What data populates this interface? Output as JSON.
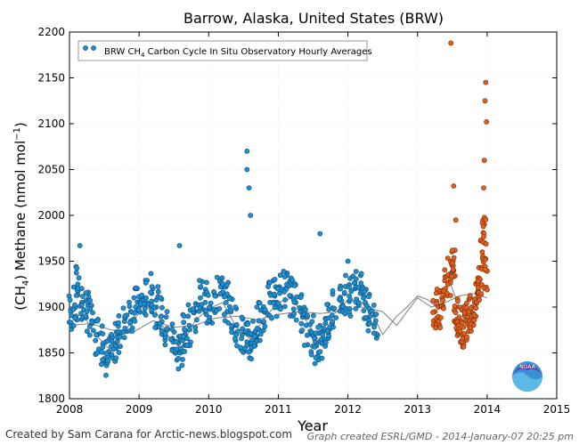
{
  "chart_data": {
    "type": "scatter",
    "title": "Barrow, Alaska, United States (BRW)",
    "xlabel": "Year",
    "ylabel_main": "(CH",
    "ylabel_sub": "4",
    "ylabel_rest": ") Methane (nmol mol",
    "ylabel_sup": "−1",
    "ylabel_end": ")",
    "xlim": [
      2008,
      2015
    ],
    "ylim": [
      1800,
      2200
    ],
    "x_ticks": [
      "2008",
      "2009",
      "2010",
      "2011",
      "2012",
      "2013",
      "2014",
      "2015"
    ],
    "y_ticks": [
      "1800",
      "1850",
      "1900",
      "1950",
      "2000",
      "2050",
      "2100",
      "2150",
      "2200"
    ],
    "grid": true,
    "legend": {
      "placement": "top-left",
      "label_prefix": "BRW CH",
      "label_sub": "4",
      "label_suffix": " Carbon Cycle In Situ Observatory Hourly Averages"
    },
    "series": [
      {
        "name": "BRW CH4 Carbon Cycle In Situ Observatory Hourly Averages",
        "color": "#1f8fd0",
        "edge": "#0b4a78",
        "x": [
          2008.02,
          2008.08,
          2008.12,
          2008.18,
          2008.25,
          2008.32,
          2008.4,
          2008.48,
          2008.55,
          2008.6,
          2008.66,
          2008.72,
          2008.8,
          2008.88,
          2008.95,
          2009.02,
          2009.1,
          2009.18,
          2009.25,
          2009.32,
          2009.4,
          2009.48,
          2009.55,
          2009.6,
          2009.66,
          2009.72,
          2009.8,
          2009.88,
          2009.95,
          2010.02,
          2010.1,
          2010.18,
          2010.25,
          2010.32,
          2010.4,
          2010.48,
          2010.55,
          2010.6,
          2010.66,
          2010.72,
          2010.8,
          2010.88,
          2010.95,
          2011.02,
          2011.1,
          2011.18,
          2011.25,
          2011.32,
          2011.4,
          2011.48,
          2011.55,
          2011.6,
          2011.66,
          2011.72,
          2011.8,
          2011.88,
          2011.95,
          2012.02,
          2012.1,
          2012.18,
          2012.25,
          2012.32,
          2012.4
        ],
        "y": [
          1895,
          1900,
          1925,
          1905,
          1895,
          1885,
          1870,
          1860,
          1845,
          1848,
          1860,
          1872,
          1888,
          1895,
          1900,
          1902,
          1910,
          1915,
          1900,
          1890,
          1875,
          1865,
          1852,
          1855,
          1870,
          1880,
          1895,
          1910,
          1905,
          1900,
          1912,
          1915,
          1905,
          1895,
          1880,
          1870,
          1862,
          1860,
          1872,
          1885,
          1895,
          1905,
          1912,
          1915,
          1920,
          1912,
          1905,
          1895,
          1880,
          1870,
          1858,
          1862,
          1875,
          1888,
          1898,
          1908,
          1915,
          1912,
          1920,
          1915,
          1905,
          1895,
          1885
        ]
      },
      {
        "name": "",
        "color": "#e06020",
        "edge": "#7a2a05",
        "x": [
          2013.25,
          2013.3,
          2013.35,
          2013.4,
          2013.45,
          2013.5,
          2013.52,
          2013.55,
          2013.58,
          2013.62,
          2013.66,
          2013.7,
          2013.74,
          2013.78,
          2013.82,
          2013.86,
          2013.9,
          2013.93,
          2013.96,
          2013.98
        ],
        "y": [
          1895,
          1900,
          1910,
          1920,
          1935,
          1950,
          1940,
          1900,
          1880,
          1872,
          1878,
          1885,
          1895,
          1900,
          1905,
          1915,
          1930,
          1960,
          1990,
          1940
        ]
      }
    ],
    "spikes": [
      {
        "x": 2008.15,
        "y": 1967
      },
      {
        "x": 2009.58,
        "y": 1967
      },
      {
        "x": 2010.55,
        "y": 2070
      },
      {
        "x": 2010.55,
        "y": 2050
      },
      {
        "x": 2010.58,
        "y": 2030
      },
      {
        "x": 2010.6,
        "y": 2000
      },
      {
        "x": 2011.6,
        "y": 1980
      },
      {
        "x": 2012.0,
        "y": 1950
      },
      {
        "x": 2013.48,
        "y": 2188
      },
      {
        "x": 2013.52,
        "y": 2032
      },
      {
        "x": 2013.55,
        "y": 1995
      },
      {
        "x": 2013.98,
        "y": 2145
      },
      {
        "x": 2013.97,
        "y": 2125
      },
      {
        "x": 2013.99,
        "y": 2102
      },
      {
        "x": 2013.96,
        "y": 2060
      },
      {
        "x": 2013.95,
        "y": 2030
      }
    ],
    "trend_line": {
      "color": "#808080",
      "x": [
        2008.0,
        2008.3,
        2008.6,
        2008.9,
        2009.2,
        2009.5,
        2009.8,
        2010.1,
        2010.4,
        2010.7,
        2011.0,
        2011.3,
        2011.6,
        2011.9,
        2012.2,
        2012.5,
        2012.7,
        2012.85,
        2013.0,
        2013.2,
        2013.4,
        2013.6,
        2013.8,
        2014.0
      ],
      "y": [
        1880,
        1882,
        1875,
        1872,
        1885,
        1878,
        1880,
        1888,
        1890,
        1886,
        1892,
        1895,
        1893,
        1895,
        1900,
        1895,
        1880,
        1895,
        1910,
        1900,
        1905,
        1912,
        1915,
        1910
      ]
    },
    "seasonal_line": {
      "color": "#808080",
      "x": [
        2008.0,
        2008.2,
        2008.4,
        2008.6,
        2008.8,
        2009.0,
        2009.2,
        2009.4,
        2009.6,
        2009.8,
        2010.0,
        2010.2,
        2010.4,
        2010.6,
        2010.8,
        2011.0,
        2011.2,
        2011.4,
        2011.6,
        2011.8,
        2012.0,
        2012.2,
        2012.4,
        2012.5,
        2012.6,
        2012.7,
        2012.85,
        2013.0,
        2013.15,
        2013.3,
        2013.45,
        2013.6,
        2013.8,
        2014.0
      ],
      "y": [
        1892,
        1890,
        1868,
        1852,
        1875,
        1893,
        1902,
        1870,
        1855,
        1885,
        1898,
        1905,
        1878,
        1865,
        1888,
        1905,
        1910,
        1885,
        1862,
        1892,
        1908,
        1905,
        1885,
        1870,
        1880,
        1890,
        1900,
        1912,
        1908,
        1898,
        1930,
        1900,
        1910,
        1920
      ]
    }
  },
  "footer": {
    "credit": "Created by Sam Carana for Arctic-news.blogspot.com",
    "generated": "Graph created ESRL/GMD - 2014-January-07 20:25 pm"
  },
  "logo": {
    "text": "NOAA"
  }
}
